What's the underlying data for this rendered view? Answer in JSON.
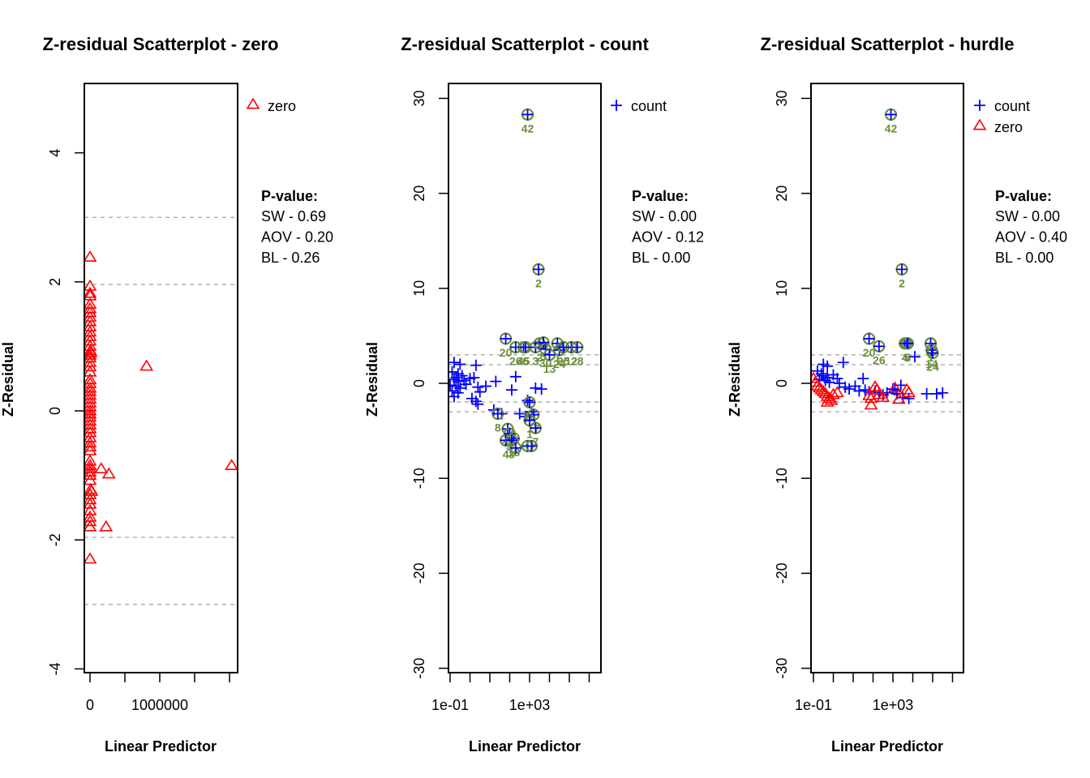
{
  "chart_data": [
    {
      "type": "scatter",
      "title": "Z-residual Scatterplot - zero",
      "xlabel": "Linear Predictor",
      "ylabel": "Z-Residual",
      "xscale": "linear",
      "xlim": [
        -80000,
        2100000
      ],
      "ylim": [
        -4.2,
        5
      ],
      "xticks": [
        0,
        500000,
        1000000,
        1500000,
        2000000
      ],
      "xtick_labels": [
        "0",
        "",
        "1000000",
        "",
        ""
      ],
      "yticks": [
        -4,
        -2,
        0,
        2,
        4
      ],
      "ytick_labels": [
        "-4",
        "-2",
        "0",
        "2",
        "4"
      ],
      "reference_lines": [
        -3,
        -1.96,
        1.96,
        3
      ],
      "legend": {
        "position": "top-right-outside",
        "entries": [
          {
            "label": "zero",
            "marker": "triangle",
            "color": "#ff0000"
          }
        ]
      },
      "pvalue": {
        "heading": "P-value:",
        "lines": [
          "SW - 0.69",
          "AOV - 0.20",
          "BL - 0.26"
        ]
      },
      "series": [
        {
          "name": "zero",
          "marker": "triangle",
          "color": "#ff0000",
          "points": [
            [
              0,
              2.38
            ],
            [
              0,
              1.93
            ],
            [
              0,
              1.82
            ],
            [
              0,
              1.78
            ],
            [
              0,
              1.65
            ],
            [
              0,
              1.58
            ],
            [
              0,
              1.52
            ],
            [
              0,
              1.45
            ],
            [
              0,
              1.38
            ],
            [
              0,
              1.3
            ],
            [
              0,
              1.22
            ],
            [
              0,
              1.15
            ],
            [
              0,
              1.08
            ],
            [
              0,
              1.0
            ],
            [
              5000,
              0.93
            ],
            [
              10000,
              0.9
            ],
            [
              0,
              0.86
            ],
            [
              0,
              0.82
            ],
            [
              0,
              0.75
            ],
            [
              0,
              0.68
            ],
            [
              0,
              0.6
            ],
            [
              0,
              0.48
            ],
            [
              0,
              0.42
            ],
            [
              0,
              0.35
            ],
            [
              0,
              0.3
            ],
            [
              0,
              0.24
            ],
            [
              0,
              0.18
            ],
            [
              0,
              0.12
            ],
            [
              0,
              0.06
            ],
            [
              0,
              0.0
            ],
            [
              0,
              -0.05
            ],
            [
              0,
              -0.1
            ],
            [
              0,
              -0.16
            ],
            [
              0,
              -0.22
            ],
            [
              0,
              -0.28
            ],
            [
              0,
              -0.34
            ],
            [
              0,
              -0.42
            ],
            [
              0,
              -0.5
            ],
            [
              0,
              -0.56
            ],
            [
              0,
              -0.62
            ],
            [
              0,
              -0.78
            ],
            [
              0,
              -0.85
            ],
            [
              0,
              -0.9
            ],
            [
              0,
              -0.95
            ],
            [
              0,
              -1.0
            ],
            [
              0,
              -1.08
            ],
            [
              10000,
              -1.22
            ],
            [
              20000,
              -1.25
            ],
            [
              0,
              -1.3
            ],
            [
              0,
              -1.38
            ],
            [
              0,
              -1.45
            ],
            [
              0,
              -1.55
            ],
            [
              0,
              -1.65
            ],
            [
              0,
              -1.72
            ],
            [
              0,
              -1.8
            ],
            [
              0,
              -2.3
            ],
            [
              160000,
              -0.9
            ],
            [
              270000,
              -0.98
            ],
            [
              230000,
              -1.8
            ],
            [
              810000,
              0.69
            ],
            [
              2030000,
              -0.85
            ]
          ]
        }
      ]
    },
    {
      "type": "scatter",
      "title": "Z-residual Scatterplot - count",
      "xlabel": "Linear Predictor",
      "ylabel": "Z-Residual",
      "xscale": "log10",
      "xlim_log10": [
        -1.1,
        6.5
      ],
      "ylim": [
        -31,
        31
      ],
      "xticks_log10": [
        -1,
        0,
        1,
        2,
        3,
        4,
        5,
        6
      ],
      "xtick_labels": [
        "1e-01",
        "",
        "",
        "",
        "1e+03",
        "",
        "",
        ""
      ],
      "yticks": [
        -30,
        -20,
        -10,
        0,
        10,
        20,
        30
      ],
      "ytick_labels": [
        "-30",
        "-20",
        "-10",
        "0",
        "10",
        "20",
        "30"
      ],
      "reference_lines": [
        -3,
        -1.96,
        1.96,
        3
      ],
      "legend": {
        "position": "top-right-outside",
        "entries": [
          {
            "label": "count",
            "marker": "plus",
            "color": "#0000ff"
          }
        ]
      },
      "pvalue": {
        "heading": "P-value:",
        "lines": [
          "SW - 0.00",
          "AOV - 0.12",
          "BL - 0.00"
        ]
      },
      "series": [
        {
          "name": "count",
          "marker": "plus",
          "color": "#0000ff",
          "points": [
            [
              -0.8,
              2.2
            ],
            [
              -0.5,
              2.0
            ],
            [
              -0.9,
              1.2
            ],
            [
              -0.6,
              1.0
            ],
            [
              -0.7,
              0.6
            ],
            [
              -0.8,
              0.4
            ],
            [
              -0.6,
              0.2
            ],
            [
              -1.0,
              -0.2
            ],
            [
              -0.7,
              -0.3
            ],
            [
              -0.5,
              -0.5
            ],
            [
              -0.9,
              -0.8
            ],
            [
              -0.6,
              -1.0
            ],
            [
              -0.8,
              -1.4
            ],
            [
              -0.4,
              0.8
            ],
            [
              -0.3,
              0.3
            ],
            [
              -0.2,
              -0.1
            ],
            [
              0.0,
              0.5
            ],
            [
              0.3,
              1.9
            ],
            [
              0.2,
              0.6
            ],
            [
              0.4,
              -0.4
            ],
            [
              0.5,
              -0.9
            ],
            [
              0.1,
              -1.6
            ],
            [
              0.3,
              -1.9
            ],
            [
              0.4,
              -2.2
            ],
            [
              0.8,
              -0.3
            ],
            [
              1.2,
              -2.8
            ],
            [
              1.3,
              0.2
            ],
            [
              1.6,
              -3.2
            ],
            [
              2.1,
              -0.7
            ],
            [
              2.3,
              0.7
            ],
            [
              3.3,
              -0.5
            ],
            [
              3.6,
              -0.6
            ],
            [
              2.5,
              -3.2
            ],
            [
              2.9,
              -1.8
            ],
            [
              3.1,
              -3.0
            ],
            [
              2.8,
              -3.5
            ]
          ]
        },
        {
          "name": "count-outliers",
          "marker": "plus-circle",
          "color": "#0000ff",
          "ring_color": "#6b8e3a",
          "points": [
            {
              "x": 2.9,
              "y": 28.3,
              "label": "42"
            },
            {
              "x": 3.45,
              "y": 12.0,
              "label": "2"
            },
            {
              "x": 1.8,
              "y": 4.7,
              "label": "20"
            },
            {
              "x": 2.3,
              "y": 3.8,
              "label": "26"
            },
            {
              "x": 2.7,
              "y": 3.8,
              "label": "45"
            },
            {
              "x": 2.8,
              "y": 3.8,
              "label": "6"
            },
            {
              "x": 3.3,
              "y": 3.8,
              "label": "3"
            },
            {
              "x": 3.5,
              "y": 4.2,
              "label": "2"
            },
            {
              "x": 3.7,
              "y": 4.3,
              "label": "5"
            },
            {
              "x": 3.8,
              "y": 3.6,
              "label": "30"
            },
            {
              "x": 4.0,
              "y": 3.0,
              "label": "13"
            },
            {
              "x": 4.4,
              "y": 4.2,
              "label": "1"
            },
            {
              "x": 4.5,
              "y": 3.5,
              "label": "24"
            },
            {
              "x": 4.7,
              "y": 3.8,
              "label": "25"
            },
            {
              "x": 5.1,
              "y": 3.8,
              "label": "12"
            },
            {
              "x": 5.4,
              "y": 3.8,
              "label": "28"
            },
            {
              "x": 1.4,
              "y": -3.2,
              "label": "8"
            },
            {
              "x": 3.0,
              "y": -2.0,
              "label": "10"
            },
            {
              "x": 3.2,
              "y": -3.3,
              "label": "17"
            },
            {
              "x": 1.9,
              "y": -4.8,
              "label": "43"
            },
            {
              "x": 2.0,
              "y": -5.3,
              "label": "4"
            },
            {
              "x": 2.2,
              "y": -5.8,
              "label": "18"
            },
            {
              "x": 1.8,
              "y": -6.0,
              "label": "4"
            },
            {
              "x": 2.1,
              "y": -6.0,
              "label": "3"
            },
            {
              "x": 2.3,
              "y": -6.8,
              "label": ""
            },
            {
              "x": 3.3,
              "y": -4.7,
              "label": "7"
            },
            {
              "x": 3.0,
              "y": -3.9,
              "label": "1"
            },
            {
              "x": 2.9,
              "y": -6.6,
              "label": ""
            },
            {
              "x": 3.1,
              "y": -6.6,
              "label": ""
            }
          ]
        }
      ]
    },
    {
      "type": "scatter",
      "title": "Z-residual Scatterplot - hurdle",
      "xlabel": "Linear Predictor",
      "ylabel": "Z-Residual",
      "xscale": "log10",
      "xlim_log10": [
        -1.1,
        6.5
      ],
      "ylim": [
        -31,
        31
      ],
      "xticks_log10": [
        -1,
        0,
        1,
        2,
        3,
        4,
        5,
        6
      ],
      "xtick_labels": [
        "1e-01",
        "",
        "",
        "",
        "1e+03",
        "",
        "",
        ""
      ],
      "yticks": [
        -30,
        -20,
        -10,
        0,
        10,
        20,
        30
      ],
      "ytick_labels": [
        "-30",
        "-20",
        "-10",
        "0",
        "10",
        "20",
        "30"
      ],
      "reference_lines": [
        -3,
        -1.96,
        1.96,
        3
      ],
      "legend": {
        "position": "top-right-outside",
        "entries": [
          {
            "label": "count",
            "marker": "plus",
            "color": "#0000ff"
          },
          {
            "label": "zero",
            "marker": "triangle",
            "color": "#ff0000"
          }
        ]
      },
      "pvalue": {
        "heading": "P-value:",
        "lines": [
          "SW - 0.00",
          "AOV - 0.40",
          "BL - 0.00"
        ]
      },
      "series": [
        {
          "name": "count",
          "marker": "plus",
          "color": "#0000ff",
          "points": [
            [
              -0.5,
              2.0
            ],
            [
              -0.3,
              1.8
            ],
            [
              -0.8,
              1.3
            ],
            [
              -0.6,
              1.0
            ],
            [
              -0.5,
              0.8
            ],
            [
              -0.3,
              0.6
            ],
            [
              -0.4,
              0.3
            ],
            [
              -0.2,
              0.1
            ],
            [
              -0.7,
              0.4
            ],
            [
              0.0,
              0.9
            ],
            [
              0.2,
              0.5
            ],
            [
              0.5,
              2.2
            ],
            [
              0.3,
              0.0
            ],
            [
              0.6,
              -0.4
            ],
            [
              0.8,
              -0.6
            ],
            [
              1.1,
              -0.3
            ],
            [
              1.3,
              -0.8
            ],
            [
              1.5,
              0.5
            ],
            [
              1.6,
              -0.7
            ],
            [
              1.8,
              -0.9
            ],
            [
              2.1,
              -0.8
            ],
            [
              2.3,
              -1.0
            ],
            [
              2.5,
              -1.2
            ],
            [
              2.7,
              -1.0
            ],
            [
              3.0,
              -0.6
            ],
            [
              3.1,
              -0.7
            ],
            [
              3.2,
              -1.1
            ],
            [
              3.4,
              -0.2
            ],
            [
              3.5,
              -1.5
            ],
            [
              4.1,
              2.8
            ],
            [
              4.7,
              -1.1
            ],
            [
              5.2,
              -1.1
            ],
            [
              5.5,
              -1.0
            ],
            [
              3.8,
              -1.6
            ]
          ]
        },
        {
          "name": "zero",
          "marker": "triangle",
          "color": "#ff0000",
          "points": [
            [
              -1.0,
              0.5
            ],
            [
              -0.9,
              0.1
            ],
            [
              -0.8,
              -0.3
            ],
            [
              -0.7,
              -0.5
            ],
            [
              -0.6,
              -0.7
            ],
            [
              -0.5,
              -0.9
            ],
            [
              -0.4,
              -1.1
            ],
            [
              -0.3,
              -1.4
            ],
            [
              -0.2,
              -1.6
            ],
            [
              -0.3,
              -2.0
            ],
            [
              -0.1,
              -1.8
            ],
            [
              0.0,
              -1.2
            ],
            [
              0.2,
              -1.0
            ],
            [
              1.8,
              -1.3
            ],
            [
              1.9,
              -1.6
            ],
            [
              2.1,
              -0.4
            ],
            [
              2.2,
              -0.7
            ],
            [
              2.3,
              -1.2
            ],
            [
              2.5,
              -1.5
            ],
            [
              1.9,
              -2.3
            ],
            [
              3.1,
              -0.5
            ],
            [
              3.3,
              -1.7
            ],
            [
              3.7,
              -0.7
            ],
            [
              3.8,
              -1.0
            ]
          ]
        },
        {
          "name": "count-outliers",
          "marker": "plus-circle",
          "color": "#0000ff",
          "ring_color": "#6b8e3a",
          "points": [
            {
              "x": 2.9,
              "y": 28.3,
              "label": "42"
            },
            {
              "x": 3.45,
              "y": 12.0,
              "label": "2"
            },
            {
              "x": 1.8,
              "y": 4.7,
              "label": "20"
            },
            {
              "x": 2.3,
              "y": 3.9,
              "label": "26"
            },
            {
              "x": 3.6,
              "y": 4.2,
              "label": "4"
            },
            {
              "x": 3.7,
              "y": 4.2,
              "label": "5"
            },
            {
              "x": 3.75,
              "y": 4.2,
              "label": "3"
            },
            {
              "x": 4.9,
              "y": 4.2,
              "label": "1"
            },
            {
              "x": 4.95,
              "y": 3.5,
              "label": "14"
            },
            {
              "x": 5.0,
              "y": 3.2,
              "label": "24"
            }
          ]
        }
      ]
    }
  ]
}
